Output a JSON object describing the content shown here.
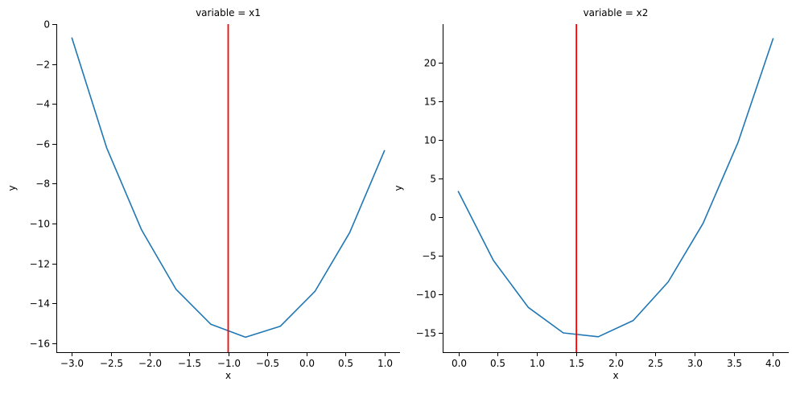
{
  "chart_data": [
    {
      "type": "line",
      "title": "variable = x1",
      "xlabel": "x",
      "ylabel": "y",
      "xlim": [
        -3.2,
        1.2
      ],
      "ylim": [
        -16.45,
        0
      ],
      "xticks": [
        -3.0,
        -2.5,
        -2.0,
        -1.5,
        -1.0,
        -0.5,
        0.0,
        0.5,
        1.0
      ],
      "xtick_labels": [
        "−3.0",
        "−2.5",
        "−2.0",
        "−1.5",
        "−1.0",
        "−0.5",
        "0.0",
        "0.5",
        "1.0"
      ],
      "yticks": [
        0,
        -2,
        -4,
        -6,
        -8,
        -10,
        -12,
        -14,
        -16
      ],
      "ytick_labels": [
        "0",
        "−2",
        "−4",
        "−6",
        "−8",
        "−10",
        "−12",
        "−14",
        "−16"
      ],
      "grid": false,
      "series": [
        {
          "color": "#1f77b4",
          "x": [
            -3.0,
            -2.556,
            -2.111,
            -1.667,
            -1.222,
            -0.778,
            -0.333,
            0.111,
            0.556,
            1.0
          ],
          "y": [
            -0.7,
            -6.2,
            -10.3,
            -13.3,
            -15.05,
            -15.7,
            -15.15,
            -13.4,
            -10.45,
            -6.35
          ]
        }
      ],
      "vline": {
        "x": -1.0,
        "color": "#ff0000"
      }
    },
    {
      "type": "line",
      "title": "variable = x2",
      "xlabel": "x",
      "ylabel": "y",
      "xlim": [
        -0.2,
        4.2
      ],
      "ylim": [
        -17.5,
        25
      ],
      "xticks": [
        0.0,
        0.5,
        1.0,
        1.5,
        2.0,
        2.5,
        3.0,
        3.5,
        4.0
      ],
      "xtick_labels": [
        "0.0",
        "0.5",
        "1.0",
        "1.5",
        "2.0",
        "2.5",
        "3.0",
        "3.5",
        "4.0"
      ],
      "yticks": [
        20,
        15,
        10,
        5,
        0,
        -5,
        -10,
        -15
      ],
      "ytick_labels": [
        "20",
        "15",
        "10",
        "5",
        "0",
        "−5",
        "−10",
        "−15"
      ],
      "grid": false,
      "series": [
        {
          "color": "#1f77b4",
          "x": [
            0.0,
            0.444,
            0.889,
            1.333,
            1.778,
            2.222,
            2.667,
            3.111,
            3.556,
            4.0
          ],
          "y": [
            3.3,
            -5.6,
            -11.7,
            -15.0,
            -15.5,
            -13.4,
            -8.4,
            -0.8,
            9.7,
            23.1
          ]
        }
      ],
      "vline": {
        "x": 1.5,
        "color": "#ff0000"
      }
    }
  ]
}
